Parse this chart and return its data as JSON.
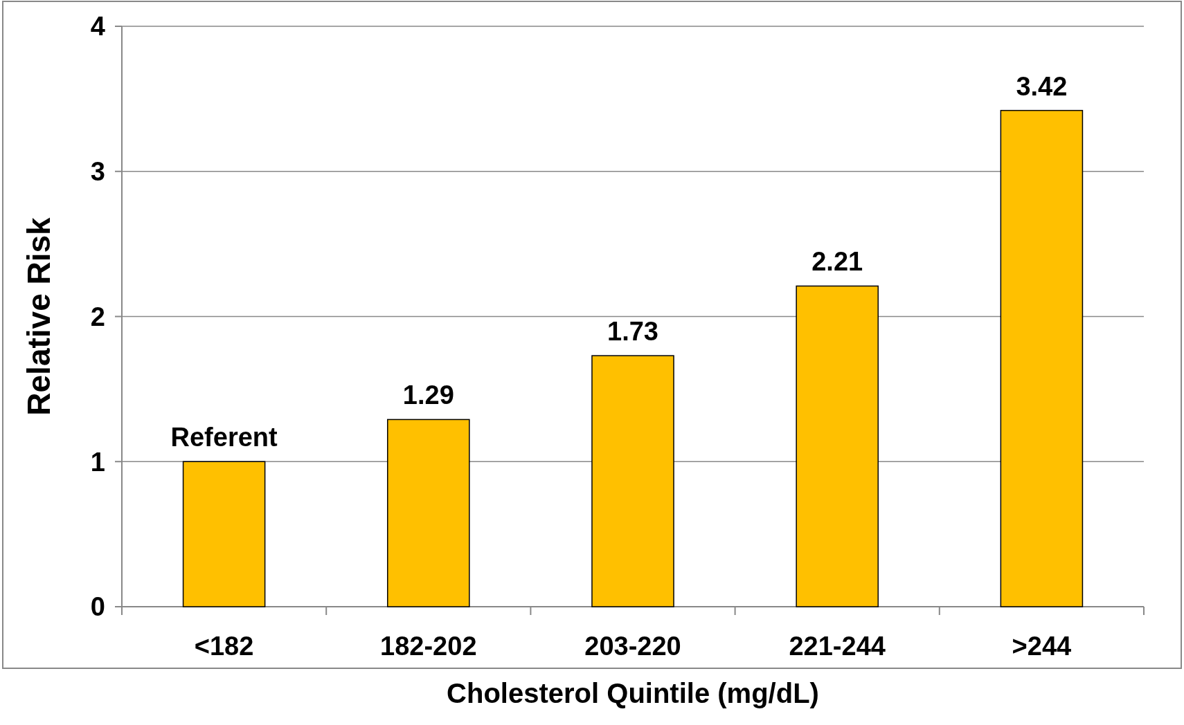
{
  "chart_data": {
    "type": "bar",
    "xlabel": "Cholesterol Quintile (mg/dL)",
    "ylabel": "Relative Risk",
    "categories": [
      "<182",
      "182-202",
      "203-220",
      "221-244",
      ">244"
    ],
    "values": [
      1,
      1.29,
      1.73,
      2.21,
      3.42
    ],
    "value_labels": [
      "Referent",
      "1.29",
      "1.73",
      "2.21",
      "3.42"
    ],
    "color": "#ffc000",
    "ylim": [
      0,
      4
    ],
    "yticks": [
      0,
      1,
      2,
      3,
      4
    ],
    "grid": "y"
  }
}
